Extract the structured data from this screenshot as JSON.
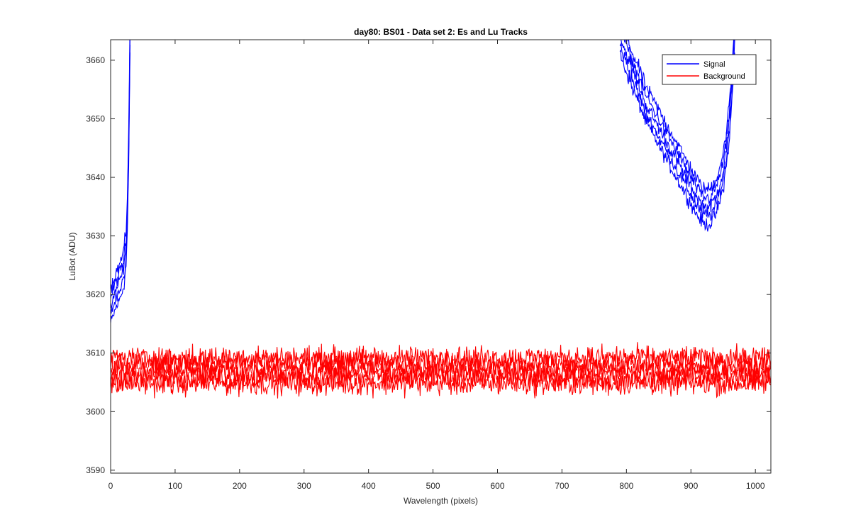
{
  "chart_data": {
    "type": "line",
    "title": "day80: BS01 - Data set 2: Es and Lu Tracks",
    "xlabel": "Wavelength (pixels)",
    "ylabel": "LuBot (ADU)",
    "xlim": [
      0,
      1024
    ],
    "ylim": [
      3589.5,
      3663.5
    ],
    "xticks": [
      0,
      100,
      200,
      300,
      400,
      500,
      600,
      700,
      800,
      900,
      1000
    ],
    "yticks": [
      3590,
      3600,
      3610,
      3620,
      3630,
      3640,
      3650,
      3660
    ],
    "grid": false,
    "legend_position": "top-right",
    "series": [
      {
        "name": "Signal",
        "color": "#0000ff",
        "segments": [
          {
            "x": [
              0,
              3,
              6,
              9,
              12,
              15,
              18,
              21,
              24,
              26,
              28,
              30
            ],
            "y": [
              3618,
              3619,
              3620,
              3621,
              3621.5,
              3622.5,
              3623.5,
              3625,
              3628,
              3634,
              3645,
              3664
            ]
          },
          {
            "x": [
              790,
              800,
              810,
              820,
              830,
              840,
              850,
              860,
              870,
              880,
              890,
              900,
              910,
              920,
              930,
              940,
              950,
              955,
              960,
              963,
              966,
              968
            ],
            "y": [
              3664,
              3661,
              3658,
              3655.5,
              3652.5,
              3650.5,
              3648.5,
              3646.5,
              3644.5,
              3642.5,
              3640.5,
              3638.5,
              3636.5,
              3635,
              3635,
              3637,
              3641,
              3645,
              3650,
              3655,
              3660,
              3664
            ]
          }
        ]
      },
      {
        "name": "Background",
        "color": "#ff0000",
        "segments": [
          {
            "x": [
              0,
              100,
              200,
              300,
              400,
              500,
              600,
              700,
              800,
              900,
              1000,
              1024
            ],
            "y": [
              3607,
              3607,
              3607,
              3607,
              3607,
              3607,
              3607,
              3607,
              3607,
              3607,
              3607,
              3607
            ]
          }
        ]
      }
    ]
  }
}
